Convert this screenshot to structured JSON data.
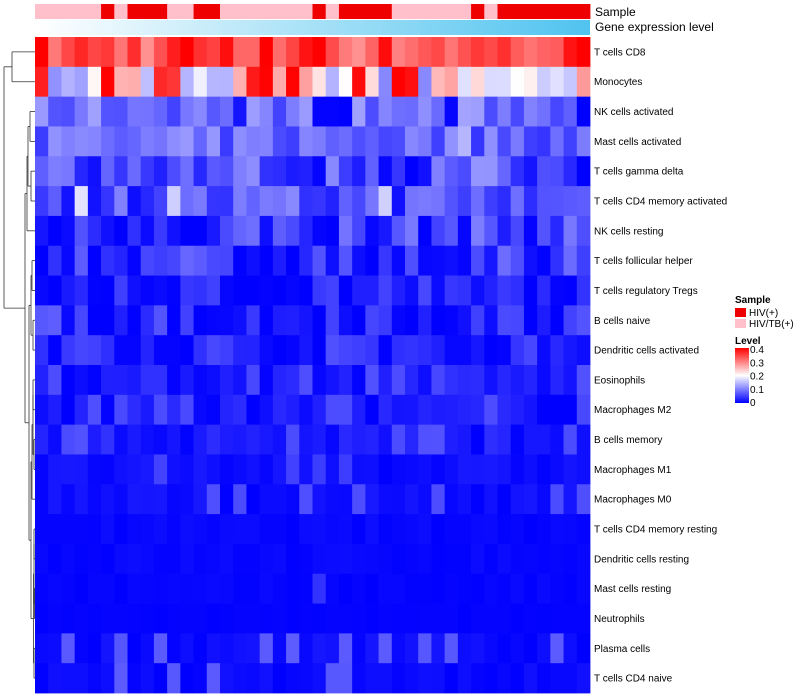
{
  "chart_data": {
    "type": "heatmap",
    "title": "",
    "annotations": [
      {
        "name": "Sample"
      },
      {
        "name": "Gene expression level"
      }
    ],
    "row_labels": [
      "T cells CD8",
      "Monocytes",
      "NK cells activated",
      "Mast cells activated",
      "T cells gamma delta",
      "T cells CD4 memory activated",
      "NK cells resting",
      "T cells follicular helper",
      "T cells regulatory  Tregs",
      "B cells naive",
      "Dendritic cells activated",
      "Eosinophils",
      "Macrophages M2",
      "B cells memory",
      "Macrophages M1",
      "Macrophages M0",
      "T cells CD4 memory resting",
      "Dendritic cells resting",
      "Mast cells resting",
      "Neutrophils",
      "Plasma cells",
      "T cells CD4 naive"
    ],
    "n_columns": 42,
    "sample_groups": [
      1,
      1,
      1,
      1,
      1,
      0,
      1,
      0,
      0,
      0,
      1,
      1,
      0,
      0,
      1,
      1,
      1,
      1,
      1,
      1,
      1,
      0,
      1,
      0,
      0,
      0,
      0,
      1,
      1,
      1,
      1,
      1,
      1,
      0,
      1,
      0,
      0,
      0,
      0,
      0,
      0,
      0
    ],
    "expression_gradient": [
      0.02,
      0.25
    ],
    "legend": {
      "sample": {
        "title": "Sample",
        "entries": [
          "HIV(+)",
          "HIV/TB(+)"
        ],
        "colors": [
          "#ee0000",
          "#ffc0cb"
        ]
      },
      "level": {
        "title": "Level",
        "ticks": [
          "0.4",
          "0.3",
          "0.2",
          "0.1",
          "0"
        ],
        "range": [
          0,
          0.4
        ]
      }
    },
    "row_profiles": [
      {
        "base": 0.34,
        "spread": 0.06,
        "high_prob": 0.28,
        "high": 0.43
      },
      {
        "base": 0.19,
        "spread": 0.09,
        "high_prob": 0.14,
        "high": 0.38
      },
      {
        "base": 0.09,
        "spread": 0.04,
        "high_prob": 0.12,
        "high": 0.01
      },
      {
        "base": 0.08,
        "spread": 0.04,
        "high_prob": 0.05,
        "high": 0.15
      },
      {
        "base": 0.07,
        "spread": 0.05,
        "high_prob": 0.18,
        "high": 0.01
      },
      {
        "base": 0.06,
        "spread": 0.05,
        "high_prob": 0.06,
        "high": 0.17
      },
      {
        "base": 0.05,
        "spread": 0.05,
        "high_prob": 0.35,
        "high": 0.005
      },
      {
        "base": 0.045,
        "spread": 0.04,
        "high_prob": 0.3,
        "high": 0.005
      },
      {
        "base": 0.03,
        "spread": 0.03,
        "high_prob": 0.4,
        "high": 0.002
      },
      {
        "base": 0.04,
        "spread": 0.04,
        "high_prob": 0.35,
        "high": 0.002
      },
      {
        "base": 0.035,
        "spread": 0.03,
        "high_prob": 0.3,
        "high": 0.003
      },
      {
        "base": 0.02,
        "spread": 0.02,
        "high_prob": 0.15,
        "high": 0.06
      },
      {
        "base": 0.015,
        "spread": 0.02,
        "high_prob": 0.15,
        "high": 0.06
      },
      {
        "base": 0.02,
        "spread": 0.02,
        "high_prob": 0.15,
        "high": 0.06
      },
      {
        "base": 0.01,
        "spread": 0.01,
        "high_prob": 0.08,
        "high": 0.05
      },
      {
        "base": 0.01,
        "spread": 0.01,
        "high_prob": 0.12,
        "high": 0.06
      },
      {
        "base": 0.005,
        "spread": 0.005,
        "high_prob": 0.03,
        "high": 0.06
      },
      {
        "base": 0.005,
        "spread": 0.005,
        "high_prob": 0.03,
        "high": 0.05
      },
      {
        "base": 0.003,
        "spread": 0.004,
        "high_prob": 0.01,
        "high": 0.04
      },
      {
        "base": 0.002,
        "spread": 0.002,
        "high_prob": 0.0,
        "high": 0.04
      },
      {
        "base": 0.008,
        "spread": 0.01,
        "high_prob": 0.14,
        "high": 0.07
      },
      {
        "base": 0.006,
        "spread": 0.008,
        "high_prob": 0.12,
        "high": 0.07
      }
    ]
  }
}
